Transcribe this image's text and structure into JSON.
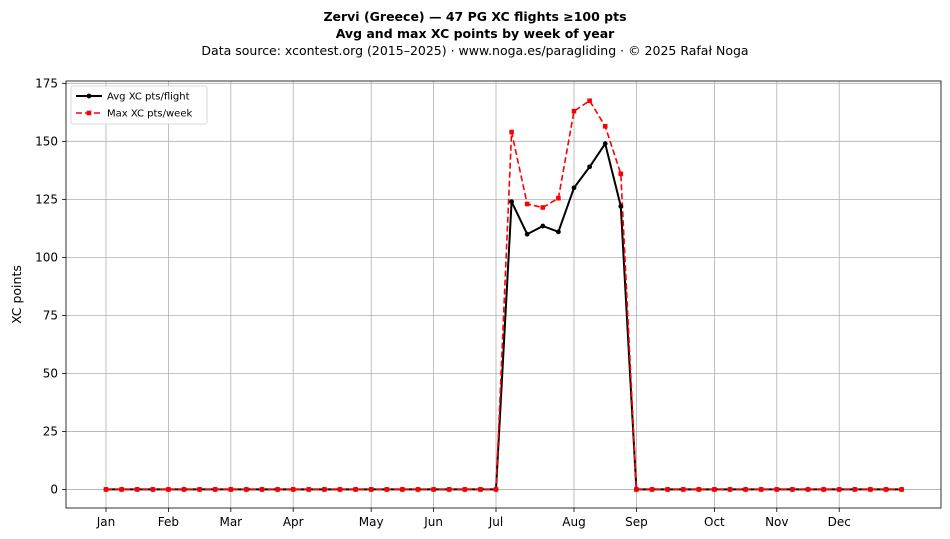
{
  "title_lines": [
    "Zervi (Greece)  —  47 PG XC flights ≥100 pts",
    "Avg and max XC points by week of year"
  ],
  "subtitle": "Data source: xcontest.org (2015–2025)  ·  www.noga.es/paragliding  ·  © 2025 Rafał Noga",
  "chart_data": {
    "type": "line",
    "ylabel": "XC points",
    "xlabel": "",
    "x_unit": "week of year",
    "ylim": [
      -8,
      176
    ],
    "yticks": [
      0,
      25,
      50,
      75,
      100,
      125,
      150,
      175
    ],
    "grid": true,
    "legend_position": "top-left",
    "month_ticks": [
      {
        "label": "Jan",
        "week": 1
      },
      {
        "label": "Feb",
        "week": 5
      },
      {
        "label": "Mar",
        "week": 9
      },
      {
        "label": "Apr",
        "week": 13
      },
      {
        "label": "May",
        "week": 18
      },
      {
        "label": "Jun",
        "week": 22
      },
      {
        "label": "Jul",
        "week": 26
      },
      {
        "label": "Aug",
        "week": 31
      },
      {
        "label": "Sep",
        "week": 35
      },
      {
        "label": "Oct",
        "week": 40
      },
      {
        "label": "Nov",
        "week": 44
      },
      {
        "label": "Dec",
        "week": 48
      }
    ],
    "x": [
      1,
      2,
      3,
      4,
      5,
      6,
      7,
      8,
      9,
      10,
      11,
      12,
      13,
      14,
      15,
      16,
      17,
      18,
      19,
      20,
      21,
      22,
      23,
      24,
      25,
      26,
      27,
      28,
      29,
      30,
      31,
      32,
      33,
      34,
      35,
      36,
      37,
      38,
      39,
      40,
      41,
      42,
      43,
      44,
      45,
      46,
      47,
      48,
      49,
      50,
      51,
      52
    ],
    "series": [
      {
        "name": "Avg XC pts/flight",
        "color": "#000000",
        "style": "solid-circle",
        "values": [
          0,
          0,
          0,
          0,
          0,
          0,
          0,
          0,
          0,
          0,
          0,
          0,
          0,
          0,
          0,
          0,
          0,
          0,
          0,
          0,
          0,
          0,
          0,
          0,
          0,
          0,
          124,
          110,
          113.5,
          111,
          130,
          139,
          149,
          122,
          0,
          0,
          0,
          0,
          0,
          0,
          0,
          0,
          0,
          0,
          0,
          0,
          0,
          0,
          0,
          0,
          0,
          0
        ]
      },
      {
        "name": "Max XC pts/week",
        "color": "#ff0000",
        "style": "dashed-square",
        "values": [
          0,
          0,
          0,
          0,
          0,
          0,
          0,
          0,
          0,
          0,
          0,
          0,
          0,
          0,
          0,
          0,
          0,
          0,
          0,
          0,
          0,
          0,
          0,
          0,
          0,
          0,
          154,
          123,
          121.5,
          125.5,
          163,
          167.5,
          156.5,
          136,
          0,
          0,
          0,
          0,
          0,
          0,
          0,
          0,
          0,
          0,
          0,
          0,
          0,
          0,
          0,
          0,
          0,
          0
        ]
      }
    ]
  }
}
